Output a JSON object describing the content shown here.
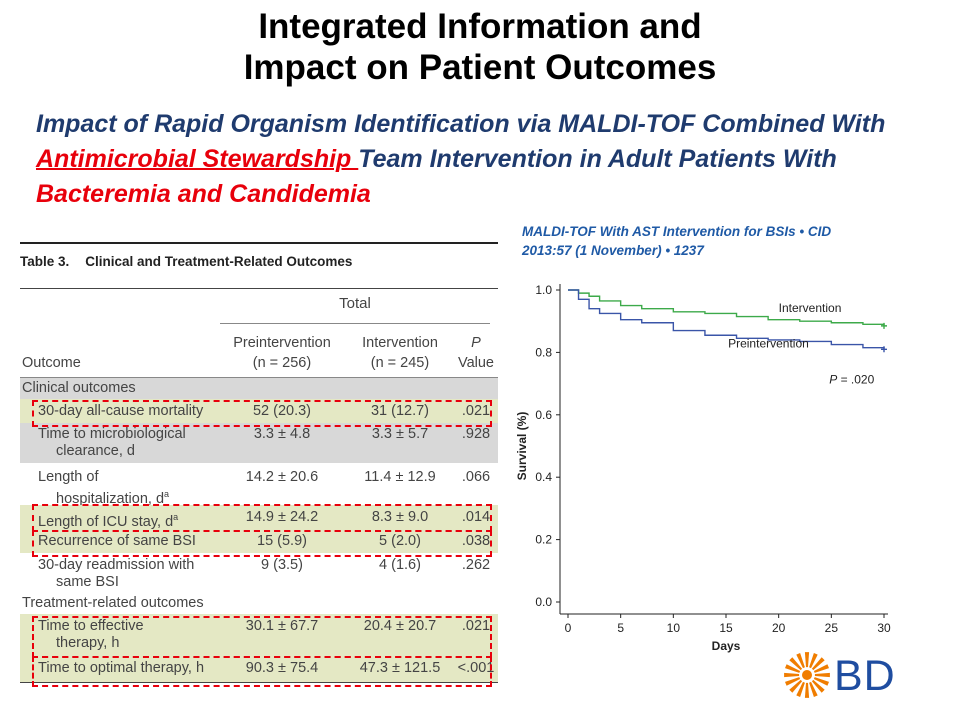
{
  "title": {
    "line1": "Integrated Information and",
    "line2": "Impact on Patient Outcomes"
  },
  "subtitle": {
    "part1": "Impact of Rapid Organism Identification via MALDI-TOF Combined With ",
    "part2_red_underline": "Antimicrobial Stewardship ",
    "part3": "Team Intervention in Adult Patients With ",
    "part4_red": "Bacteremia and Candidemia"
  },
  "citation": {
    "line1": "MALDI-TOF With AST Intervention for BSIs • CID",
    "line2": "2013:57 (1 November) • 1237"
  },
  "table": {
    "caption_number": "Table 3.",
    "caption_text": "Clinical and Treatment-Related Outcomes",
    "group_header": "Total",
    "columns": {
      "outcome": "Outcome",
      "pre_line1": "Preintervention",
      "pre_line2": "(n = 256)",
      "int_line1": "Intervention",
      "int_line2": "(n = 245)",
      "p_line1": "P",
      "p_line2": "Value"
    },
    "section_clinical": "Clinical outcomes",
    "section_treatment": "Treatment-related outcomes",
    "rows": [
      {
        "label": "30-day all-cause mortality",
        "label2": "",
        "pre": "52 (20.3)",
        "int": "31 (12.7)",
        "p": ".021"
      },
      {
        "label": "Time to microbiological",
        "label2": "clearance, d",
        "pre": "3.3 ± 4.8",
        "int": "3.3 ± 5.7",
        "p": ".928"
      },
      {
        "label": "Length of",
        "label2": "hospitalization, d",
        "sup": "a",
        "pre": "14.2 ± 20.6",
        "int": "11.4 ± 12.9",
        "p": ".066"
      },
      {
        "label": "Length of ICU stay, d",
        "label2": "",
        "sup": "a",
        "pre": "14.9 ± 24.2",
        "int": "8.3 ± 9.0",
        "p": ".014"
      },
      {
        "label": "Recurrence of same BSI",
        "label2": "",
        "pre": "15 (5.9)",
        "int": "5 (2.0)",
        "p": ".038"
      },
      {
        "label": "30-day readmission with",
        "label2": "same BSI",
        "pre": "9 (3.5)",
        "int": "4 (1.6)",
        "p": ".262"
      },
      {
        "label": "Time to effective",
        "label2": "therapy, h",
        "pre": "30.1 ± 67.7",
        "int": "20.4 ± 20.7",
        "p": ".021"
      },
      {
        "label": "Time to optimal therapy, h",
        "label2": "",
        "pre": "90.3 ± 75.4",
        "int": "47.3 ± 121.5",
        "p": "<.001"
      }
    ]
  },
  "chart_data": {
    "type": "line",
    "title": "",
    "xlabel": "Days",
    "ylabel": "Survival (%)",
    "xlim": [
      0,
      30
    ],
    "ylim": [
      0.0,
      1.0
    ],
    "x_ticks": [
      "0",
      "5",
      "10",
      "15",
      "20",
      "25",
      "30"
    ],
    "y_ticks": [
      "0.0",
      "0.2",
      "0.4",
      "0.6",
      "0.8",
      "1.0"
    ],
    "annotation": "P = .020",
    "series": [
      {
        "name": "Intervention",
        "color": "#3daa4a",
        "x": [
          0,
          1,
          2,
          3,
          5,
          7,
          10,
          13,
          16,
          19,
          22,
          25,
          28,
          30
        ],
        "y": [
          1.0,
          0.99,
          0.98,
          0.965,
          0.95,
          0.94,
          0.93,
          0.925,
          0.915,
          0.905,
          0.9,
          0.895,
          0.89,
          0.885
        ]
      },
      {
        "name": "Preintervention",
        "color": "#3a55a8",
        "x": [
          0,
          1,
          2,
          3,
          5,
          7,
          10,
          13,
          16,
          19,
          22,
          25,
          28,
          30
        ],
        "y": [
          1.0,
          0.97,
          0.94,
          0.925,
          0.905,
          0.895,
          0.87,
          0.855,
          0.845,
          0.84,
          0.835,
          0.825,
          0.815,
          0.81
        ]
      }
    ]
  },
  "logo": {
    "text": "BD",
    "color": "#1f4da0",
    "icon": "bd-starburst-logo-icon",
    "icon_color": "#f07d00"
  }
}
